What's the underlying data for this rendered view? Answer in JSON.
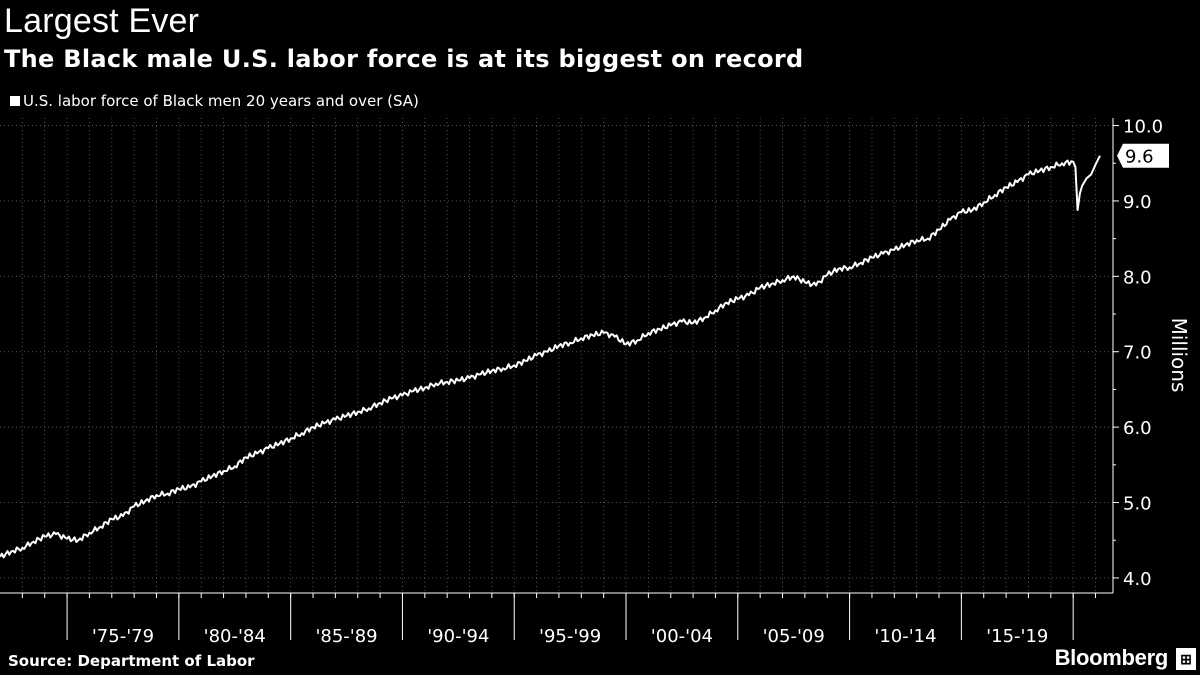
{
  "header": {
    "title": "Largest Ever",
    "subtitle": "The Black male U.S. labor force is at its biggest on record"
  },
  "legend": {
    "label": "U.S. labor force of Black men 20 years and over (SA)"
  },
  "footer": {
    "source": "Source: Department of Labor",
    "brand": "Bloomberg",
    "brand_icon": "bloomberg-terminal-icon"
  },
  "colors": {
    "background": "#000000",
    "line": "#ffffff",
    "grid": "#555555"
  },
  "chart_data": {
    "type": "line",
    "title": "Largest Ever",
    "subtitle": "The Black male U.S. labor force is at its biggest on record",
    "ylabel": "Millions",
    "xlabel": "",
    "ylim": [
      3.8,
      10.1
    ],
    "xlim": [
      1972.0,
      2021.2
    ],
    "yticks": [
      4.0,
      5.0,
      6.0,
      7.0,
      8.0,
      9.0,
      10.0
    ],
    "ytick_labels": [
      "4.0",
      "5.0",
      "6.0",
      "7.0",
      "8.0",
      "9.0",
      "10.0"
    ],
    "xtick_labels": [
      "'75-'79",
      "'80-'84",
      "'85-'89",
      "'90-'94",
      "'95-'99",
      "'00-'04",
      "'05-'09",
      "'10-'14",
      "'15-'19"
    ],
    "grid": true,
    "legend_position": "top-left",
    "last_value_label": "9.6",
    "series": [
      {
        "name": "U.S. labor force of Black men 20 years and over (SA)",
        "x": [
          1972.0,
          1972.5,
          1973.0,
          1973.5,
          1974.0,
          1974.5,
          1975.0,
          1975.5,
          1976.0,
          1976.5,
          1977.0,
          1977.5,
          1978.0,
          1978.5,
          1979.0,
          1979.5,
          1980.0,
          1980.5,
          1981.0,
          1981.5,
          1982.0,
          1982.5,
          1983.0,
          1983.5,
          1984.0,
          1984.5,
          1985.0,
          1985.5,
          1986.0,
          1986.5,
          1987.0,
          1987.5,
          1988.0,
          1988.5,
          1989.0,
          1989.5,
          1990.0,
          1990.5,
          1991.0,
          1991.5,
          1992.0,
          1992.5,
          1993.0,
          1993.5,
          1994.0,
          1994.5,
          1995.0,
          1995.5,
          1996.0,
          1996.5,
          1997.0,
          1997.5,
          1998.0,
          1998.5,
          1999.0,
          1999.5,
          2000.0,
          2000.5,
          2001.0,
          2001.5,
          2002.0,
          2002.5,
          2003.0,
          2003.5,
          2004.0,
          2004.5,
          2005.0,
          2005.5,
          2006.0,
          2006.5,
          2007.0,
          2007.5,
          2008.0,
          2008.5,
          2009.0,
          2009.5,
          2010.0,
          2010.5,
          2011.0,
          2011.5,
          2012.0,
          2012.5,
          2013.0,
          2013.5,
          2014.0,
          2014.5,
          2015.0,
          2015.5,
          2016.0,
          2016.5,
          2017.0,
          2017.5,
          2018.0,
          2018.5,
          2019.0,
          2019.5,
          2020.0,
          2020.1,
          2020.2,
          2020.3,
          2020.4,
          2020.6,
          2020.8,
          2021.0,
          2021.2
        ],
        "values": [
          4.28,
          4.35,
          4.4,
          4.48,
          4.55,
          4.58,
          4.52,
          4.5,
          4.6,
          4.68,
          4.78,
          4.82,
          4.95,
          5.02,
          5.1,
          5.12,
          5.18,
          5.2,
          5.28,
          5.35,
          5.42,
          5.48,
          5.6,
          5.65,
          5.72,
          5.78,
          5.85,
          5.92,
          6.0,
          6.05,
          6.1,
          6.15,
          6.2,
          6.25,
          6.32,
          6.38,
          6.42,
          6.48,
          6.52,
          6.58,
          6.6,
          6.62,
          6.65,
          6.7,
          6.75,
          6.78,
          6.82,
          6.88,
          6.95,
          7.0,
          7.08,
          7.12,
          7.18,
          7.22,
          7.25,
          7.2,
          7.1,
          7.15,
          7.25,
          7.3,
          7.35,
          7.4,
          7.38,
          7.45,
          7.55,
          7.65,
          7.7,
          7.75,
          7.85,
          7.9,
          7.95,
          8.0,
          7.92,
          7.88,
          8.02,
          8.1,
          8.12,
          8.18,
          8.25,
          8.3,
          8.35,
          8.42,
          8.48,
          8.5,
          8.62,
          8.75,
          8.85,
          8.88,
          8.98,
          9.08,
          9.18,
          9.25,
          9.35,
          9.4,
          9.45,
          9.5,
          9.52,
          9.45,
          8.88,
          9.1,
          9.2,
          9.3,
          9.35,
          9.48,
          9.6
        ]
      }
    ]
  }
}
